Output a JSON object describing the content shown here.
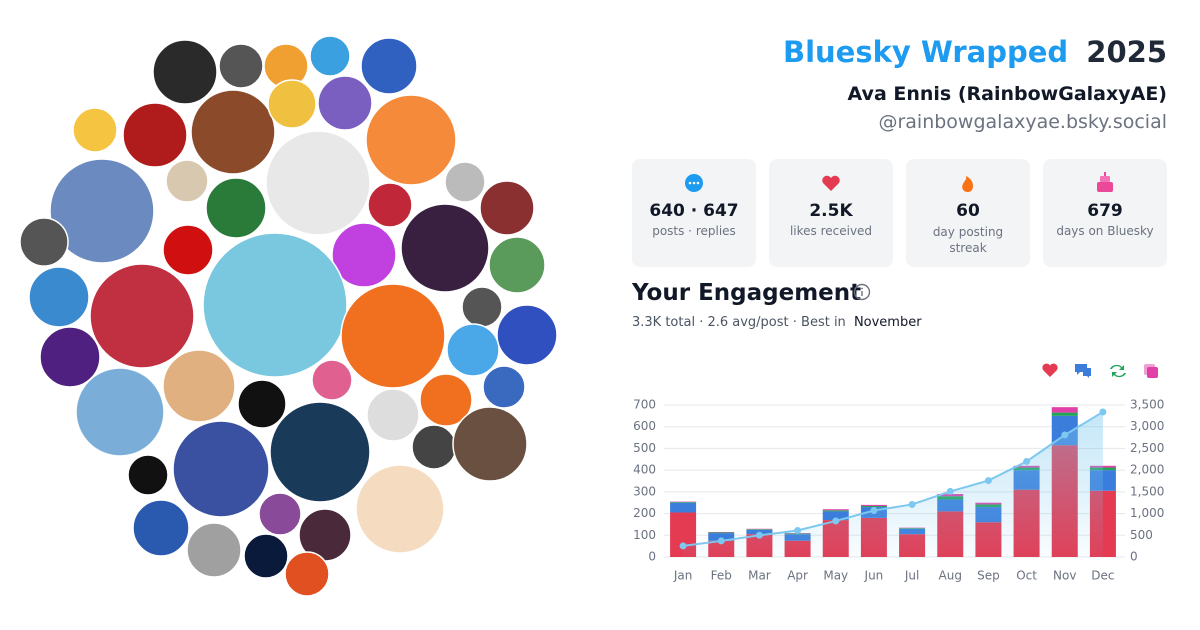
{
  "header": {
    "title_brand": "Bluesky Wrapped",
    "year": "2025",
    "name": "Ava Ennis (RainbowGalaxyAE)",
    "handle": "@rainbowgalaxyae.bsky.social"
  },
  "stats": [
    {
      "value": "640 · 647",
      "label": "posts · replies"
    },
    {
      "value": "2.5K",
      "label": "likes received"
    },
    {
      "value": "60",
      "label": "day posting streak"
    },
    {
      "value": "679",
      "label": "days on Bluesky"
    }
  ],
  "engagement": {
    "title": "Your Engagement",
    "summary": "3.3K total · 2.6 avg/post · Best in",
    "best": "November"
  },
  "chart_data": {
    "type": "bar",
    "stacked": true,
    "categories": [
      "Jan",
      "Feb",
      "Mar",
      "Apr",
      "May",
      "Jun",
      "Jul",
      "Aug",
      "Sep",
      "Oct",
      "Nov",
      "Dec"
    ],
    "series": [
      {
        "color": "#e43a52",
        "values": [
          205,
          75,
          105,
          75,
          170,
          180,
          105,
          210,
          160,
          310,
          515,
          305
        ]
      },
      {
        "color": "#3b7ddb",
        "values": [
          45,
          35,
          20,
          30,
          40,
          50,
          25,
          55,
          70,
          90,
          135,
          95
        ]
      },
      {
        "color": "#22a45a",
        "values": [
          3,
          3,
          3,
          3,
          5,
          5,
          3,
          15,
          12,
          12,
          15,
          12
        ]
      },
      {
        "color": "#e040a8",
        "values": [
          2,
          2,
          2,
          2,
          5,
          5,
          2,
          10,
          8,
          8,
          25,
          8
        ]
      },
      {
        "type": "line",
        "axis": "y2",
        "color": "#7cc8f0",
        "values": [
          255,
          370,
          500,
          610,
          830,
          1070,
          1210,
          1510,
          1760,
          2200,
          2810,
          3340
        ]
      }
    ],
    "ylim": [
      0,
      700
    ],
    "yticks": [
      0,
      100,
      200,
      300,
      400,
      500,
      600,
      700
    ],
    "y2lim": [
      0,
      3500
    ],
    "y2ticks": [
      0,
      500,
      {
        "value": 1000,
        "label": "1,000"
      },
      {
        "value": 1500,
        "label": "1,500"
      },
      {
        "value": 2000,
        "label": "2,000"
      },
      {
        "value": 2500,
        "label": "2,500"
      },
      {
        "value": 3000,
        "label": "3,000"
      },
      {
        "value": 3500,
        "label": "3,500"
      }
    ],
    "grid": true
  }
}
